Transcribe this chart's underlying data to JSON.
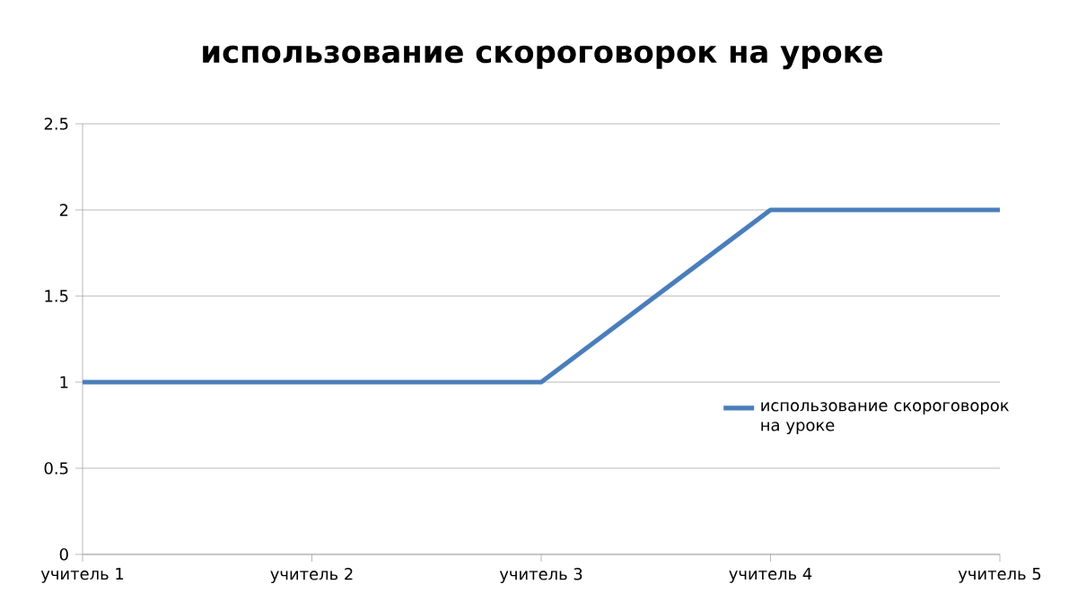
{
  "chart_data": {
    "type": "line",
    "title": "использование  скороговорок на уроке",
    "categories": [
      "учитель 1",
      "учитель 2",
      "учитель 3",
      "учитель 4",
      "учитель 5"
    ],
    "series": [
      {
        "name": "использование скороговорок на уроке",
        "color": "#4a7ebb",
        "values": [
          1,
          1,
          1,
          2,
          2
        ]
      }
    ],
    "ylim": [
      0,
      2.5
    ],
    "yticks": [
      0,
      0.5,
      1,
      1.5,
      2,
      2.5
    ],
    "grid": "y",
    "legend": "right",
    "marker": "none",
    "line_style": "solid"
  }
}
